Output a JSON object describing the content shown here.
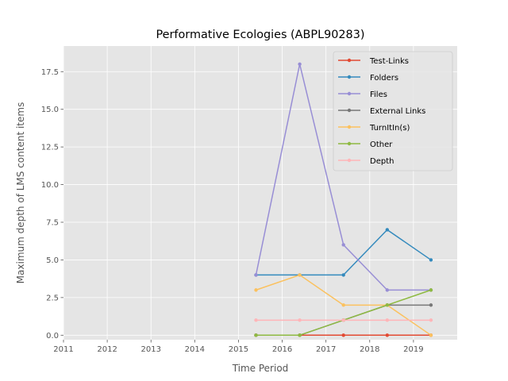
{
  "chart_data": {
    "type": "line",
    "title": "Performative Ecologies (ABPL90283)",
    "xlabel": "Time Period",
    "ylabel": "Maximum depth of LMS content items",
    "xlim": [
      2011,
      2020
    ],
    "ylim": [
      -0.3,
      19.2
    ],
    "xticks": [
      2011,
      2012,
      2013,
      2014,
      2015,
      2016,
      2017,
      2018,
      2019
    ],
    "xtick_labels": [
      "2011",
      "2012",
      "2013",
      "2014",
      "2015",
      "2016",
      "2017",
      "2018",
      "2019"
    ],
    "yticks": [
      0,
      2.5,
      5,
      7.5,
      10,
      12.5,
      15,
      17.5
    ],
    "ytick_labels": [
      "0.0",
      "2.5",
      "5.0",
      "7.5",
      "10.0",
      "12.5",
      "15.0",
      "17.5"
    ],
    "grid": true,
    "legend_position": "top-right",
    "x": [
      2015.4,
      2016.4,
      2017.4,
      2018.4,
      2019.4
    ],
    "series": [
      {
        "name": "Test-Links",
        "color": "#E24A33",
        "values": [
          0,
          0,
          0,
          0,
          0
        ]
      },
      {
        "name": "Folders",
        "color": "#348ABD",
        "values": [
          4,
          4,
          4,
          7,
          5
        ]
      },
      {
        "name": "Files",
        "color": "#988ED5",
        "values": [
          4,
          18,
          6,
          3,
          3
        ]
      },
      {
        "name": "External Links",
        "color": "#777777",
        "values": [
          0,
          0,
          1,
          2,
          2
        ]
      },
      {
        "name": "TurnItIn(s)",
        "color": "#FBC15E",
        "values": [
          3,
          4,
          2,
          2,
          0
        ]
      },
      {
        "name": "Other",
        "color": "#8EBA42",
        "values": [
          0,
          0,
          1,
          2,
          3
        ]
      },
      {
        "name": "Depth",
        "color": "#FFB5B8",
        "values": [
          1,
          1,
          1,
          1,
          1
        ]
      }
    ]
  }
}
